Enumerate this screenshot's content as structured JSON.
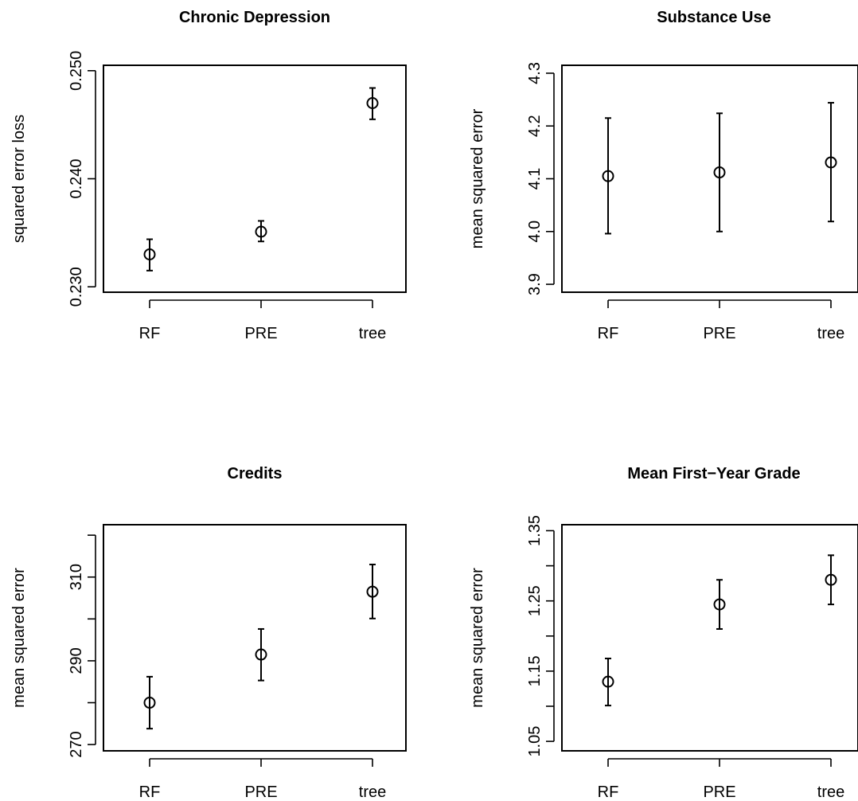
{
  "chart_data": [
    {
      "type": "scatter",
      "title": "Chronic Depression",
      "xlabel": "",
      "ylabel": "squared error loss",
      "categories": [
        "RF",
        "PRE",
        "tree"
      ],
      "ylim": [
        0.2295,
        0.2505
      ],
      "yticks": [
        0.23,
        0.24,
        0.25
      ],
      "ytick_labels": [
        "0.230",
        "0.240",
        "0.250"
      ],
      "values": [
        0.233,
        0.2351,
        0.247
      ],
      "error_low": [
        0.2315,
        0.2342,
        0.2455
      ],
      "error_high": [
        0.2344,
        0.2361,
        0.2484
      ],
      "grid": false
    },
    {
      "type": "scatter",
      "title": "Substance Use",
      "xlabel": "",
      "ylabel": "mean squared error",
      "categories": [
        "RF",
        "PRE",
        "tree"
      ],
      "ylim": [
        3.885,
        4.315
      ],
      "yticks": [
        3.9,
        4.0,
        4.1,
        4.2,
        4.3
      ],
      "ytick_labels": [
        "3.9",
        "4.0",
        "4.1",
        "4.2",
        "4.3"
      ],
      "values": [
        4.105,
        4.112,
        4.131
      ],
      "error_low": [
        3.996,
        4.0,
        4.019
      ],
      "error_high": [
        4.215,
        4.224,
        4.244
      ],
      "grid": false
    },
    {
      "type": "scatter",
      "title": "Credits",
      "xlabel": "",
      "ylabel": "mean squared error",
      "categories": [
        "RF",
        "PRE",
        "tree"
      ],
      "ylim": [
        268.5,
        322.5
      ],
      "yticks": [
        270,
        280,
        290,
        300,
        310,
        320
      ],
      "ytick_labels": [
        "270",
        "",
        "290",
        "",
        "310",
        ""
      ],
      "values": [
        280.0,
        291.5,
        306.5
      ],
      "error_low": [
        273.8,
        285.3,
        300.1
      ],
      "error_high": [
        286.2,
        297.6,
        313.0
      ],
      "grid": false
    },
    {
      "type": "scatter",
      "title": "Mean First−Year Grade",
      "xlabel": "",
      "ylabel": "mean squared error",
      "categories": [
        "RF",
        "PRE",
        "tree"
      ],
      "ylim": [
        1.0365,
        1.3585
      ],
      "yticks": [
        1.05,
        1.1,
        1.15,
        1.2,
        1.25,
        1.3,
        1.35
      ],
      "ytick_labels": [
        "1.05",
        "",
        "1.15",
        "",
        "1.25",
        "",
        "1.35"
      ],
      "values": [
        1.135,
        1.245,
        1.28
      ],
      "error_low": [
        1.101,
        1.21,
        1.245
      ],
      "error_high": [
        1.168,
        1.28,
        1.315
      ],
      "grid": false
    }
  ]
}
